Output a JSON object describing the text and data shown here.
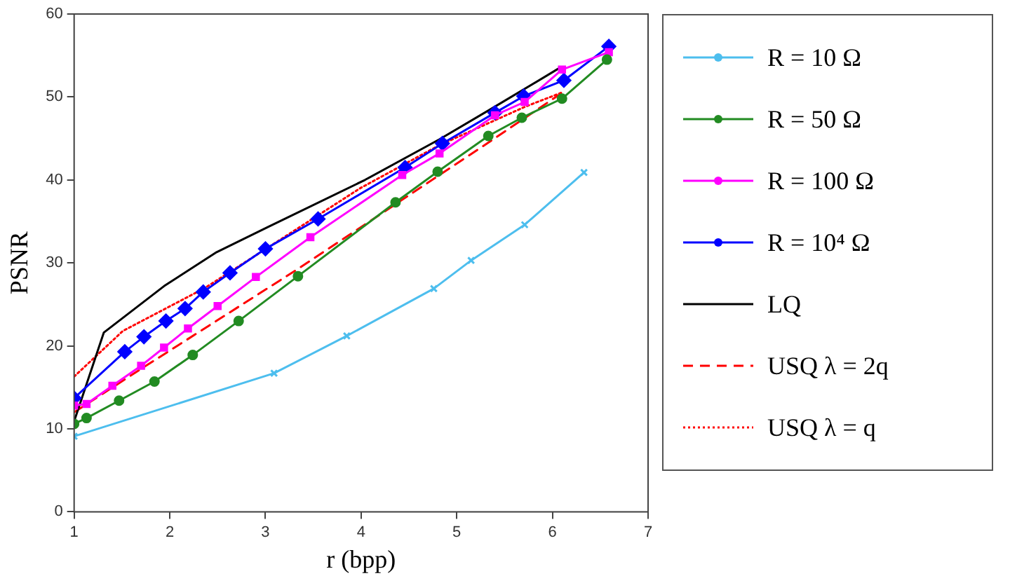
{
  "chart_data": {
    "type": "line",
    "xlabel": "r (bpp)",
    "ylabel": "PSNR",
    "xlim": [
      1,
      7
    ],
    "xticks": [
      1,
      2,
      3,
      4,
      5,
      6,
      7
    ],
    "ylim": [
      0,
      60
    ],
    "yticks": [
      0,
      10,
      20,
      30,
      40,
      50,
      60
    ],
    "grid": false,
    "legend": "right",
    "series": [
      {
        "name": "R = 10 Ω",
        "color": "#4dbeee",
        "marker": "cross",
        "line_style": "solid",
        "x": [
          1,
          3.09,
          3.85,
          4.76,
          5.15,
          5.71,
          6.33
        ],
        "values": [
          9.1,
          16.7,
          21.2,
          26.9,
          30.3,
          34.6,
          40.9
        ]
      },
      {
        "name": "R = 50 Ω",
        "color": "#228b22",
        "marker": "circle",
        "line_style": "solid",
        "x": [
          1,
          1.13,
          1.47,
          1.84,
          2.24,
          2.72,
          3.34,
          4.36,
          4.8,
          5.33,
          5.68,
          6.1,
          6.57
        ],
        "values": [
          10.6,
          11.3,
          13.4,
          15.7,
          18.9,
          23,
          28.4,
          37.3,
          41,
          45.3,
          47.5,
          49.8,
          54.5
        ]
      },
      {
        "name": "R = 100 Ω",
        "color": "#ff00ff",
        "marker": "square",
        "line_style": "solid",
        "x": [
          1,
          1.13,
          1.4,
          1.7,
          1.94,
          2.19,
          2.5,
          2.9,
          3.47,
          4.43,
          4.82,
          5.4,
          5.71,
          6.1,
          6.59
        ],
        "values": [
          12.8,
          13,
          15.2,
          17.6,
          19.8,
          22.1,
          24.8,
          28.3,
          33.1,
          40.6,
          43.2,
          47.8,
          49.4,
          53.3,
          55.4
        ]
      },
      {
        "name": "R = 10⁴ Ω",
        "color": "#0000ff",
        "marker": "diamond",
        "line_style": "solid",
        "x": [
          1,
          1.53,
          1.73,
          1.96,
          2.16,
          2.35,
          2.63,
          3,
          3.55,
          4.46,
          4.85,
          5.4,
          5.7,
          6.12,
          6.59
        ],
        "values": [
          13.7,
          19.3,
          21.1,
          23,
          24.5,
          26.5,
          28.8,
          31.7,
          35.3,
          41.5,
          44.4,
          48.1,
          50.1,
          52,
          56.1
        ]
      },
      {
        "name": "LQ",
        "color": "#000000",
        "marker": "none",
        "line_style": "solid",
        "x": [
          1,
          1.31,
          1.94,
          2.49,
          3.02,
          4.04,
          4.82,
          5.35,
          6.06
        ],
        "values": [
          10.9,
          21.6,
          27.2,
          31.3,
          34.3,
          40,
          44.9,
          48.5,
          53.4
        ]
      },
      {
        "name": "USQ λ = 2q",
        "color": "#ff0000",
        "marker": "none",
        "line_style": "dashed",
        "x": [
          1,
          1.71,
          3.33,
          5.33,
          6.1
        ],
        "values": [
          12,
          17.3,
          29.2,
          44.5,
          50.5
        ]
      },
      {
        "name": "USQ λ = q",
        "color": "#ff0000",
        "marker": "none",
        "line_style": "dotted",
        "x": [
          1,
          1.51,
          2.37,
          3.02,
          3.99,
          4.82,
          5.71,
          6.09
        ],
        "values": [
          16.3,
          21.8,
          27,
          31.8,
          39,
          44.2,
          48.8,
          50.5
        ]
      }
    ]
  }
}
